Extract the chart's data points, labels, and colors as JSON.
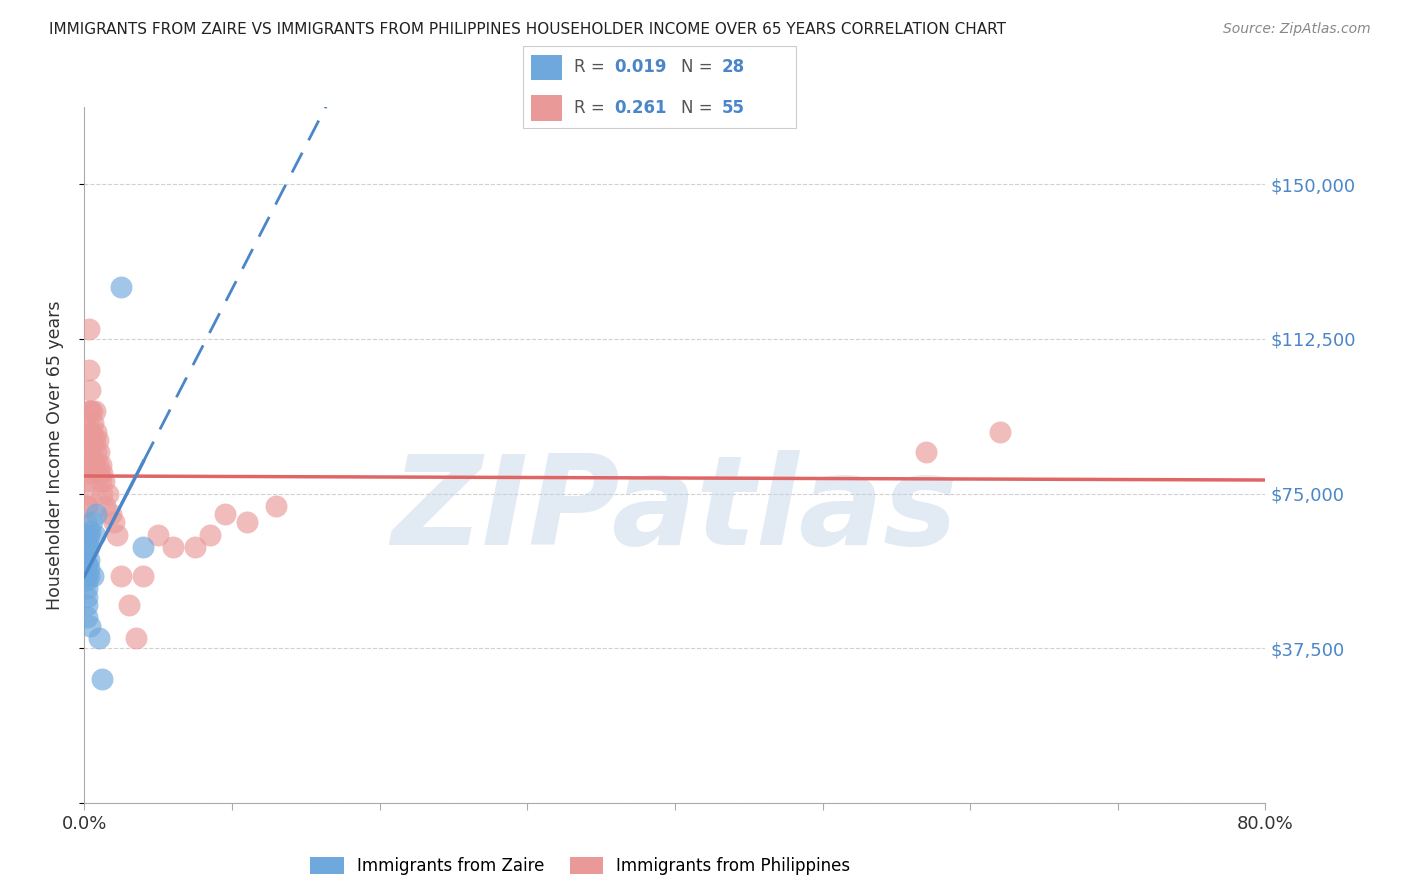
{
  "title": "IMMIGRANTS FROM ZAIRE VS IMMIGRANTS FROM PHILIPPINES HOUSEHOLDER INCOME OVER 65 YEARS CORRELATION CHART",
  "source": "Source: ZipAtlas.com",
  "ylabel": "Householder Income Over 65 years",
  "xlim": [
    0.0,
    0.8
  ],
  "ylim": [
    0,
    168750
  ],
  "yticks": [
    0,
    37500,
    75000,
    112500,
    150000
  ],
  "ytick_labels": [
    "",
    "$37,500",
    "$75,000",
    "$112,500",
    "$150,000"
  ],
  "xticks": [
    0.0,
    0.1,
    0.2,
    0.3,
    0.4,
    0.5,
    0.6,
    0.7,
    0.8
  ],
  "xtick_labels": [
    "0.0%",
    "",
    "",
    "",
    "",
    "",
    "",
    "",
    "80.0%"
  ],
  "watermark": "ZIPatlas",
  "color_zaire": "#6fa8dc",
  "color_phil": "#ea9999",
  "color_zaire_line": "#4a86c8",
  "color_phil_line": "#e06666",
  "legend_zaire_R": "0.019",
  "legend_zaire_N": "28",
  "legend_phil_R": "0.261",
  "legend_phil_N": "55",
  "zaire_x": [
    0.001,
    0.001,
    0.001,
    0.002,
    0.002,
    0.002,
    0.002,
    0.002,
    0.002,
    0.002,
    0.002,
    0.002,
    0.002,
    0.003,
    0.003,
    0.003,
    0.003,
    0.003,
    0.004,
    0.004,
    0.005,
    0.006,
    0.007,
    0.008,
    0.01,
    0.012,
    0.025,
    0.04
  ],
  "zaire_y": [
    55000,
    62000,
    58000,
    65000,
    63000,
    61000,
    58000,
    56000,
    54000,
    52000,
    50000,
    48000,
    45000,
    65000,
    62000,
    59000,
    57000,
    55000,
    66000,
    43000,
    68000,
    55000,
    65000,
    70000,
    40000,
    30000,
    125000,
    62000
  ],
  "phil_x": [
    0.001,
    0.001,
    0.002,
    0.002,
    0.002,
    0.002,
    0.002,
    0.003,
    0.003,
    0.003,
    0.003,
    0.003,
    0.004,
    0.004,
    0.004,
    0.004,
    0.005,
    0.005,
    0.005,
    0.005,
    0.006,
    0.006,
    0.006,
    0.007,
    0.007,
    0.007,
    0.008,
    0.008,
    0.009,
    0.009,
    0.01,
    0.01,
    0.011,
    0.011,
    0.012,
    0.012,
    0.013,
    0.014,
    0.016,
    0.018,
    0.02,
    0.022,
    0.025,
    0.03,
    0.035,
    0.04,
    0.05,
    0.06,
    0.075,
    0.085,
    0.095,
    0.11,
    0.13,
    0.57,
    0.62
  ],
  "phil_y": [
    72000,
    68000,
    85000,
    80000,
    78000,
    75000,
    72000,
    115000,
    105000,
    95000,
    90000,
    85000,
    100000,
    95000,
    90000,
    85000,
    95000,
    90000,
    85000,
    80000,
    92000,
    88000,
    82000,
    95000,
    88000,
    82000,
    90000,
    85000,
    88000,
    82000,
    85000,
    80000,
    82000,
    78000,
    80000,
    75000,
    78000,
    72000,
    75000,
    70000,
    68000,
    65000,
    55000,
    48000,
    40000,
    55000,
    65000,
    62000,
    62000,
    65000,
    70000,
    68000,
    72000,
    85000,
    90000
  ]
}
